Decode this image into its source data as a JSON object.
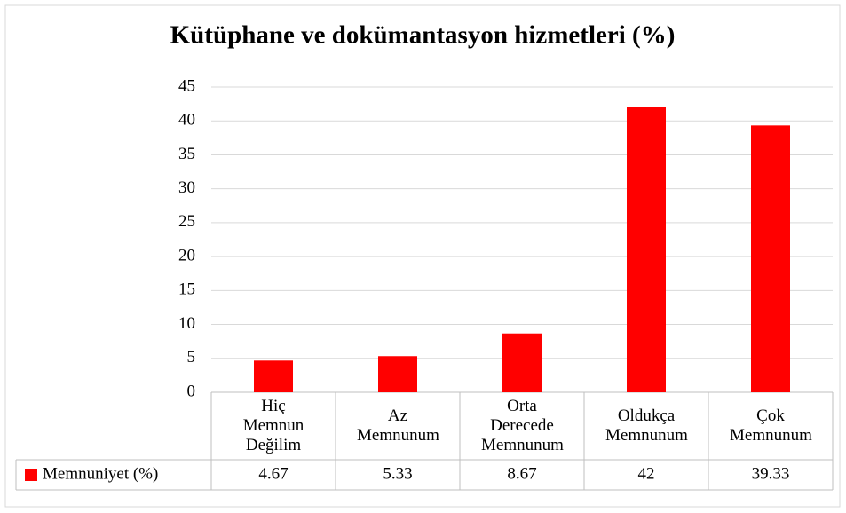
{
  "chart_data": {
    "type": "bar",
    "title": "Kütüphane ve dokümantasyon hizmetleri (%)",
    "categories": [
      "Hiç Memnun Değilim",
      "Az Memnunum",
      "Orta Derecede Memnunum",
      "Oldukça Memnunum",
      "Çok Memnunum"
    ],
    "series": [
      {
        "name": "Memnuniyet (%)",
        "color": "#ff0000",
        "values": [
          4.67,
          5.33,
          8.67,
          42,
          39.33
        ]
      }
    ],
    "ylim": [
      0,
      45
    ],
    "yticks": [
      0,
      5,
      10,
      15,
      20,
      25,
      30,
      35,
      40,
      45
    ],
    "grid": true,
    "data_table": true
  }
}
